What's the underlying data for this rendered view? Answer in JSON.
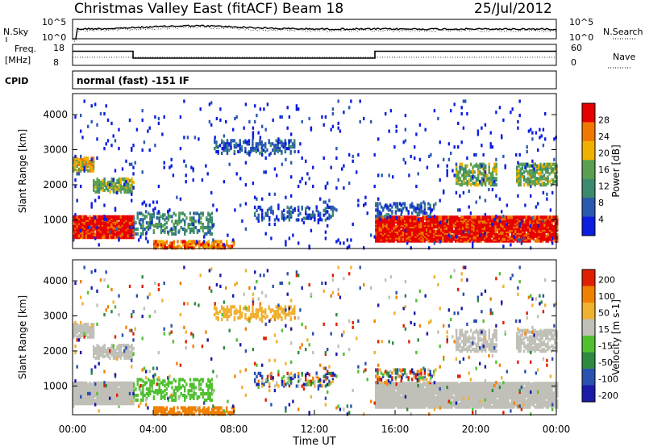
{
  "header": {
    "title": "Christmas Valley East (fitACF)",
    "beam": "Beam 18",
    "date": "25/Jul/2012"
  },
  "chart_data": [
    {
      "type": "line",
      "name": "noise-panel",
      "left_label": "N.Sky",
      "right_label": "N.Search",
      "y_ticks_left": [
        "10^5",
        "10^0"
      ],
      "y_ticks_right": [
        "10^5",
        "10^0"
      ]
    },
    {
      "type": "line",
      "name": "frequency-panel",
      "left_label_1": "Freq.",
      "left_label_2": "[MHz]",
      "right_label": "Nave",
      "y_ticks_left": [
        18,
        8
      ],
      "y_ticks_right": [
        60,
        0
      ],
      "freq_steps": [
        {
          "from": 0.0,
          "to": 3.0,
          "mhz": 15.5
        },
        {
          "from": 3.0,
          "to": 15.0,
          "mhz": 10.8
        },
        {
          "from": 15.0,
          "to": 24.0,
          "mhz": 15.5
        }
      ]
    },
    {
      "type": "table",
      "name": "cpid-panel",
      "label": "CPID",
      "mode": "normal (fast) -151 IF"
    },
    {
      "type": "heatmap",
      "name": "power-panel",
      "ylabel": "Slant Range [km]",
      "ylim": [
        180,
        4600
      ],
      "y_ticks": [
        1000,
        2000,
        3000,
        4000
      ],
      "xlim": [
        0,
        24
      ],
      "colorbar_label": "Power [dB]",
      "colorbar_ticks": [
        4,
        8,
        12,
        16,
        20,
        24,
        28
      ],
      "colorbar_colors": [
        "#0b1de0",
        "#2a5ab0",
        "#3c8a6e",
        "#5aa050",
        "#f0b000",
        "#f07800",
        "#e60000"
      ]
    },
    {
      "type": "heatmap",
      "name": "velocity-panel",
      "ylabel": "Slant Range [km]",
      "ylim": [
        180,
        4600
      ],
      "y_ticks": [
        1000,
        2000,
        3000,
        4000
      ],
      "xlim": [
        0,
        24
      ],
      "xlabel": "Time UT",
      "x_ticks": [
        "00:00",
        "04:00",
        "08:00",
        "12:00",
        "16:00",
        "20:00",
        "00:00"
      ],
      "colorbar_label": "Velocity [m s-1]",
      "colorbar_ticks": [
        "200",
        "100",
        "50",
        "15",
        "-15",
        "-50",
        "-100",
        "-200"
      ],
      "colorbar_colors": [
        "#1a1aa8",
        "#2a50b0",
        "#2e8a40",
        "#50c030",
        "#c0c0b8",
        "#f0b030",
        "#f08000",
        "#e02000"
      ]
    }
  ]
}
